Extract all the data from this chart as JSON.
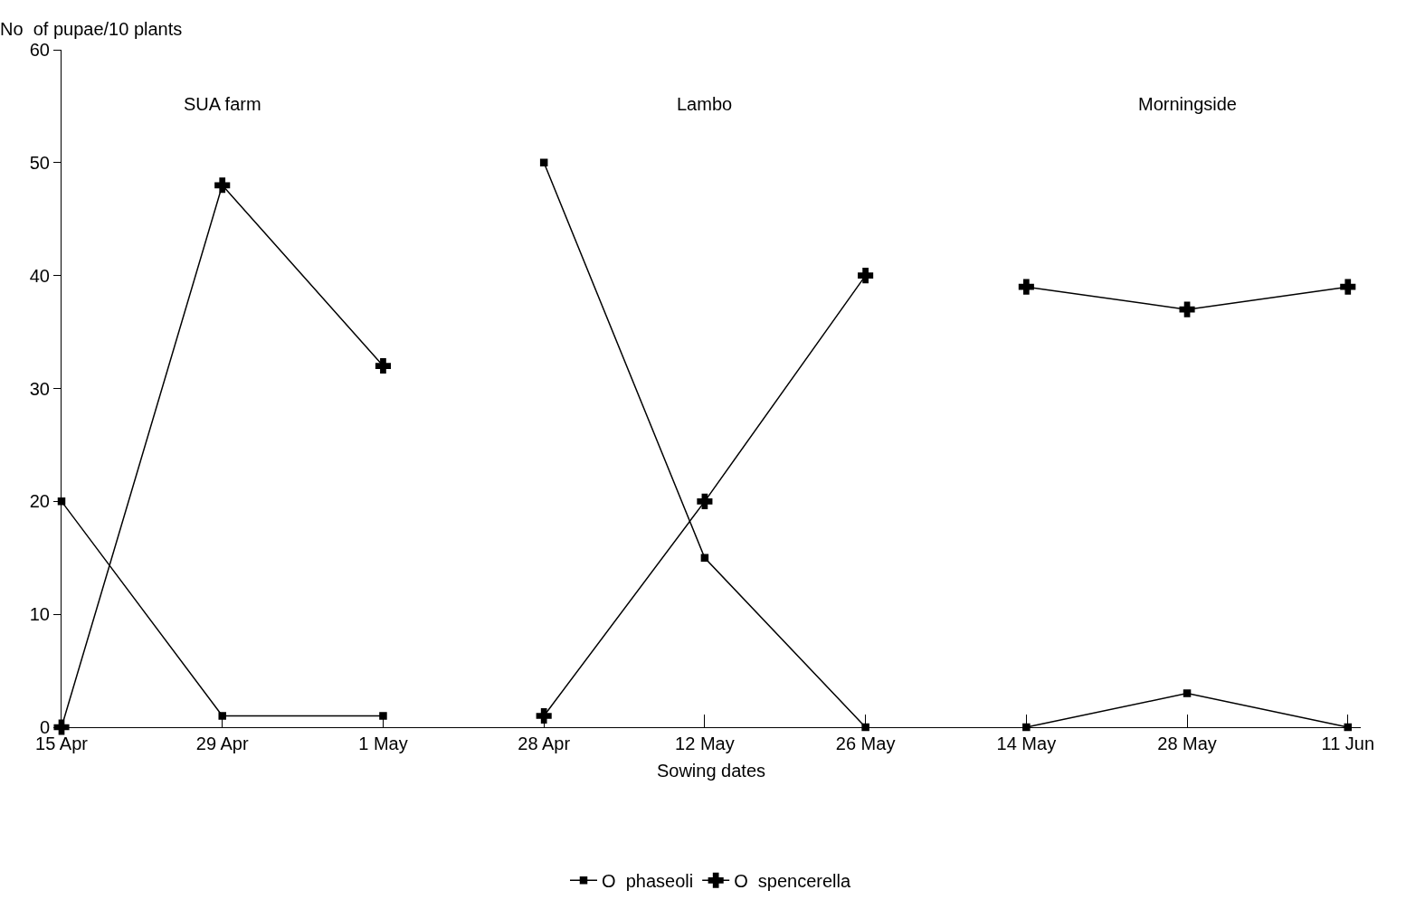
{
  "chart_data": {
    "type": "line",
    "ylabel": "No  of pupae/10 plants",
    "xlabel": "Sowing dates",
    "categories": [
      "15 Apr",
      "29 Apr",
      "1 May",
      "28 Apr",
      "12 May",
      "26 May",
      "14 May",
      "28 May",
      "11 Jun"
    ],
    "annotations": [
      "SUA farm",
      "Lambo",
      "Morningside"
    ],
    "series": [
      {
        "name": "O  phaseoli",
        "color": "#000000",
        "marker": "square",
        "values": [
          20,
          1,
          1,
          null,
          null,
          null,
          null,
          null,
          null
        ]
      },
      {
        "color": "#000000",
        "marker": "square",
        "values": [
          null,
          null,
          null,
          50,
          15,
          0,
          null,
          null,
          null
        ]
      },
      {
        "color": "#000000",
        "marker": "square",
        "values": [
          null,
          null,
          null,
          null,
          null,
          null,
          0,
          3,
          0
        ]
      },
      {
        "name": "O  spencerella",
        "color": "#000000",
        "marker": "cross",
        "values": [
          0,
          48,
          32,
          null,
          null,
          null,
          null,
          null,
          null
        ]
      },
      {
        "color": "#000000",
        "marker": "cross",
        "values": [
          null,
          null,
          null,
          1,
          20,
          40,
          null,
          null,
          null
        ]
      },
      {
        "color": "#000000",
        "marker": "cross",
        "values": [
          null,
          null,
          null,
          null,
          null,
          null,
          39,
          37,
          39
        ]
      }
    ],
    "ylim": [
      0,
      60
    ],
    "yticks": [
      0,
      10,
      20,
      30,
      40,
      50,
      60
    ],
    "legend": "bottom",
    "line_style": "solid"
  }
}
